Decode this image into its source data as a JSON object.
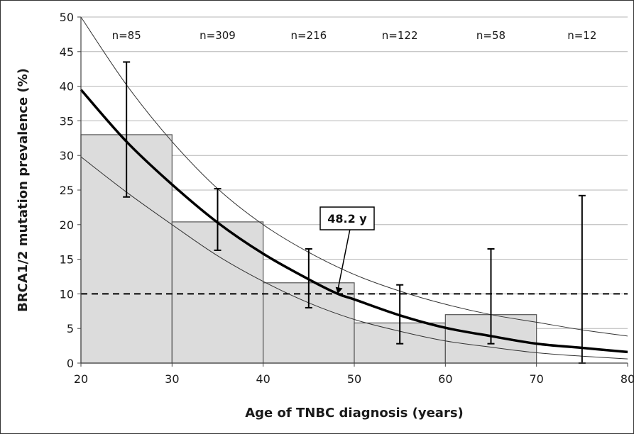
{
  "chart_data": {
    "type": "bar",
    "xlabel": "Age of TNBC diagnosis (years)",
    "ylabel": "BRCA1/2 mutation prevalence (%)",
    "xlim": [
      20,
      80
    ],
    "ylim": [
      0,
      50
    ],
    "x_ticks": [
      20,
      30,
      40,
      50,
      60,
      70,
      80
    ],
    "y_ticks": [
      0,
      5,
      10,
      15,
      20,
      25,
      30,
      35,
      40,
      45,
      50
    ],
    "grid": "horizontal",
    "bins": [
      {
        "x_start": 20,
        "x_end": 30,
        "value": 33.0,
        "ci_low": 24.0,
        "ci_high": 43.5,
        "n_label": "n=85"
      },
      {
        "x_start": 30,
        "x_end": 40,
        "value": 20.4,
        "ci_low": 16.3,
        "ci_high": 25.2,
        "n_label": "n=309"
      },
      {
        "x_start": 40,
        "x_end": 50,
        "value": 11.6,
        "ci_low": 8.0,
        "ci_high": 16.5,
        "n_label": "n=216"
      },
      {
        "x_start": 50,
        "x_end": 60,
        "value": 5.8,
        "ci_low": 2.8,
        "ci_high": 11.3,
        "n_label": "n=122"
      },
      {
        "x_start": 60,
        "x_end": 70,
        "value": 7.0,
        "ci_low": 2.8,
        "ci_high": 16.5,
        "n_label": "n=58"
      },
      {
        "x_start": 70,
        "x_end": 80,
        "value": 0.0,
        "ci_low": 0.0,
        "ci_high": 24.2,
        "n_label": "n=12"
      }
    ],
    "fit_curve": {
      "x": [
        20,
        25,
        30,
        35,
        40,
        45,
        48.2,
        50,
        55,
        60,
        65,
        70,
        75,
        80
      ],
      "y": [
        39.5,
        32.0,
        25.8,
        20.3,
        15.8,
        12.1,
        10.0,
        9.2,
        6.9,
        5.1,
        3.9,
        2.8,
        2.2,
        1.6
      ]
    },
    "upper_ci_curve": {
      "x": [
        20,
        25,
        30,
        35,
        40,
        45,
        50,
        55,
        60,
        65,
        70,
        75,
        80
      ],
      "y": [
        50.0,
        40.2,
        32.0,
        25.2,
        20.0,
        16.0,
        12.8,
        10.4,
        8.5,
        7.0,
        5.9,
        4.8,
        3.9
      ]
    },
    "lower_ci_curve": {
      "x": [
        20,
        25,
        30,
        35,
        40,
        45,
        50,
        55,
        60,
        65,
        70,
        75,
        80
      ],
      "y": [
        29.8,
        24.7,
        20.0,
        15.5,
        11.8,
        8.7,
        6.3,
        4.6,
        3.2,
        2.3,
        1.5,
        1.0,
        0.6
      ]
    },
    "reference_line": {
      "y": 10
    },
    "annotation": {
      "text": "48.2 y",
      "points_to": {
        "x": 48.2,
        "y": 10
      }
    }
  },
  "colors": {
    "bar_fill": "#dcdcdc",
    "bar_stroke": "#555555",
    "grid": "#b5b5b5",
    "axis": "#444444",
    "curve": "#000000"
  }
}
